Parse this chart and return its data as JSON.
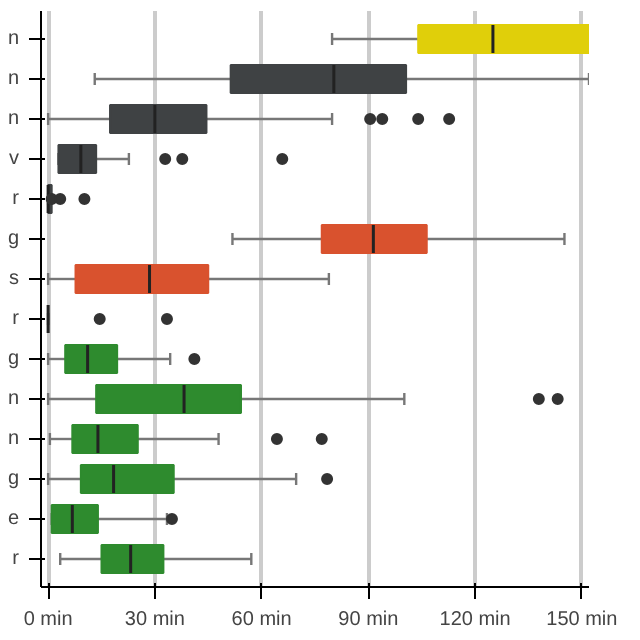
{
  "chart_data": {
    "type": "box",
    "orientation": "horizontal",
    "categories": [
      "n",
      "n",
      "n",
      "v",
      "r",
      "g",
      "s",
      "r",
      "g",
      "n",
      "n",
      "g",
      "e",
      "r"
    ],
    "colors": [
      "#e0cf0a",
      "#3f4244",
      "#3f4244",
      "#3f4244",
      "#3f4244",
      "#d9522e",
      "#d9522e",
      "#3f4244",
      "#2e8b2e",
      "#2e8b2e",
      "#2e8b2e",
      "#2e8b2e",
      "#2e8b2e",
      "#2e8b2e"
    ],
    "boxes": [
      {
        "low": 79.8,
        "q1": 104,
        "median": 125,
        "q3": 152,
        "high": 152
      },
      {
        "low": 13.1,
        "q1": 51.3,
        "median": 80.3,
        "q3": 100.6,
        "high": 152
      },
      {
        "low": 0,
        "q1": 17.4,
        "median": 30,
        "q3": 44.5,
        "high": 79.8,
        "outliers": [
          90.5,
          93.9,
          104,
          112.7
        ]
      },
      {
        "low": 2.9,
        "q1": 2.9,
        "median": 9.2,
        "q3": 13.5,
        "high": 22.7,
        "outliers": [
          32.9,
          37.7,
          65.8
        ]
      },
      {
        "low": 0,
        "q1": 0,
        "median": 0,
        "q3": 1,
        "high": 1,
        "outliers": [
          1,
          3.4,
          10.2
        ]
      },
      {
        "low": 51.8,
        "q1": 76.9,
        "median": 91.4,
        "q3": 106.4,
        "high": 145.1
      },
      {
        "low": 0,
        "q1": 7.7,
        "median": 28.5,
        "q3": 45,
        "high": 78.9
      },
      {
        "low": 0,
        "q1": 0,
        "median": 0,
        "q3": 0,
        "high": 0,
        "outliers": [
          14.5,
          33.4
        ]
      },
      {
        "low": 0,
        "q1": 4.8,
        "median": 11.1,
        "q3": 19.4,
        "high": 34.3,
        "outliers": [
          41.1
        ]
      },
      {
        "low": 0,
        "q1": 13.5,
        "median": 38.2,
        "q3": 54.2,
        "high": 100.1,
        "outliers": [
          137.9,
          143.2
        ]
      },
      {
        "low": 0.5,
        "q1": 6.8,
        "median": 14,
        "q3": 25.2,
        "high": 47.9,
        "outliers": [
          64.3,
          76.9
        ]
      },
      {
        "low": 0,
        "q1": 9.2,
        "median": 18.4,
        "q3": 35.3,
        "high": 69.7,
        "outliers": [
          78.4
        ]
      },
      {
        "low": 1,
        "q1": 1,
        "median": 6.8,
        "q3": 14,
        "high": 33.4,
        "outliers": [
          34.8
        ]
      },
      {
        "low": 3.4,
        "q1": 15,
        "median": 23.2,
        "q3": 32.4,
        "high": 57.1
      }
    ],
    "xlim": [
      -2,
      152
    ],
    "xticks": [
      {
        "value": 0,
        "label": "0 min"
      },
      {
        "value": 30,
        "label": "30 min"
      },
      {
        "value": 60,
        "label": "60 min"
      },
      {
        "value": 90,
        "label": "90 min"
      },
      {
        "value": 120,
        "label": "120 min"
      },
      {
        "value": 150,
        "label": "150 min"
      }
    ],
    "grid": "x"
  }
}
